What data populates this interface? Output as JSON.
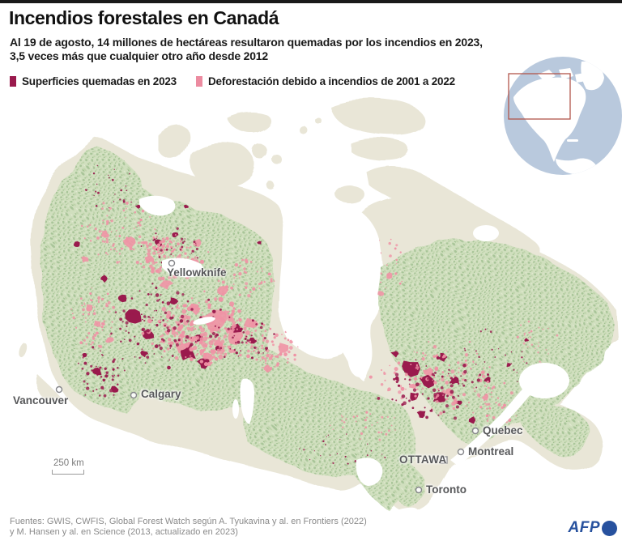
{
  "header": {
    "title": "Incendios forestales en Canadá",
    "subtitle_line1": "Al 19 de agosto, 14 millones de hectáreas resultaron quemadas por los incendios en 2023,",
    "subtitle_line2": "3,5 veces más que cualquier otro año desde 2012"
  },
  "legend": {
    "items": [
      {
        "label": "Superficies quemadas en 2023",
        "color": "#9a1a4d"
      },
      {
        "label": "Deforestación debido a incendios de 2001 a 2022",
        "color": "#ec8ba0"
      }
    ]
  },
  "inset_globe": {
    "ocean_color": "#b9c9dd",
    "land_color": "#ffffff",
    "frame_color": "#b2564c"
  },
  "map": {
    "cities": [
      {
        "name": "Yellowknife"
      },
      {
        "name": "Vancouver"
      },
      {
        "name": "Calgary"
      },
      {
        "name": "Quebec"
      },
      {
        "name": "Montreal"
      },
      {
        "name": "OTTAWA"
      },
      {
        "name": "Toronto"
      }
    ],
    "scale_label": "250 km",
    "colors": {
      "land": "#e9e6d7",
      "vegetation_base": "#cddcba",
      "vegetation_dot": "#a6c496",
      "burned_2023": "#9a1a4d",
      "deforestation_2001_2022": "#ef93a5",
      "water": "#ffffff"
    }
  },
  "footer": {
    "sources_line1": "Fuentes: GWIS, CWFIS, Global Forest Watch según A. Tyukavina y al. en Frontiers (2022)",
    "sources_line2": "y M. Hansen y al. en Science (2013, actualizado en 2023)",
    "logo_text": "AFP",
    "logo_color": "#27519e"
  }
}
